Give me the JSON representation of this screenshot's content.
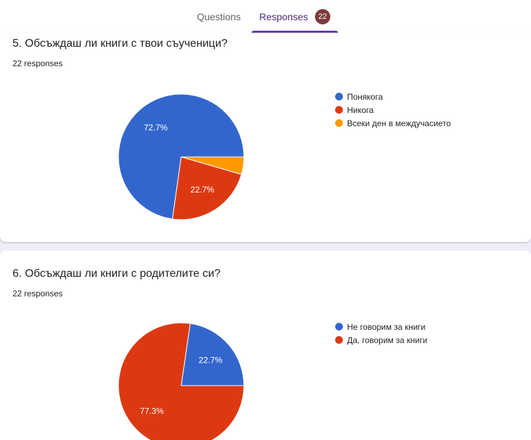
{
  "tabs": {
    "questions_label": "Questions",
    "responses_label": "Responses",
    "responses_count": "22"
  },
  "colors": {
    "blue": "#3366cc",
    "red": "#dc3912",
    "orange": "#ff9900",
    "accent": "#673ab7"
  },
  "questions": [
    {
      "title": "5. Обсъждаш ли книги с твои съученици?",
      "count_text": "22 responses"
    },
    {
      "title": "6. Обсъждаш ли книги с родителите си?",
      "count_text": "22 responses"
    }
  ],
  "chart_data": [
    {
      "type": "pie",
      "title": "5. Обсъждаш ли книги с твои съученици?",
      "labels": [
        "Понякога",
        "Никога",
        "Всеки ден в междучасието"
      ],
      "values": [
        72.7,
        22.7,
        4.5
      ],
      "colors": [
        "#3366cc",
        "#dc3912",
        "#ff9900"
      ],
      "slice_labels": [
        "72.7%",
        "22.7%",
        ""
      ],
      "legend": "right"
    },
    {
      "type": "pie",
      "title": "6. Обсъждаш ли книги с родителите си?",
      "labels": [
        "Не говорим за книги",
        "Да, говорим за книги"
      ],
      "values": [
        22.7,
        77.3
      ],
      "colors": [
        "#3366cc",
        "#dc3912"
      ],
      "slice_labels": [
        "22.7%",
        "77.3%"
      ],
      "legend": "right"
    }
  ]
}
